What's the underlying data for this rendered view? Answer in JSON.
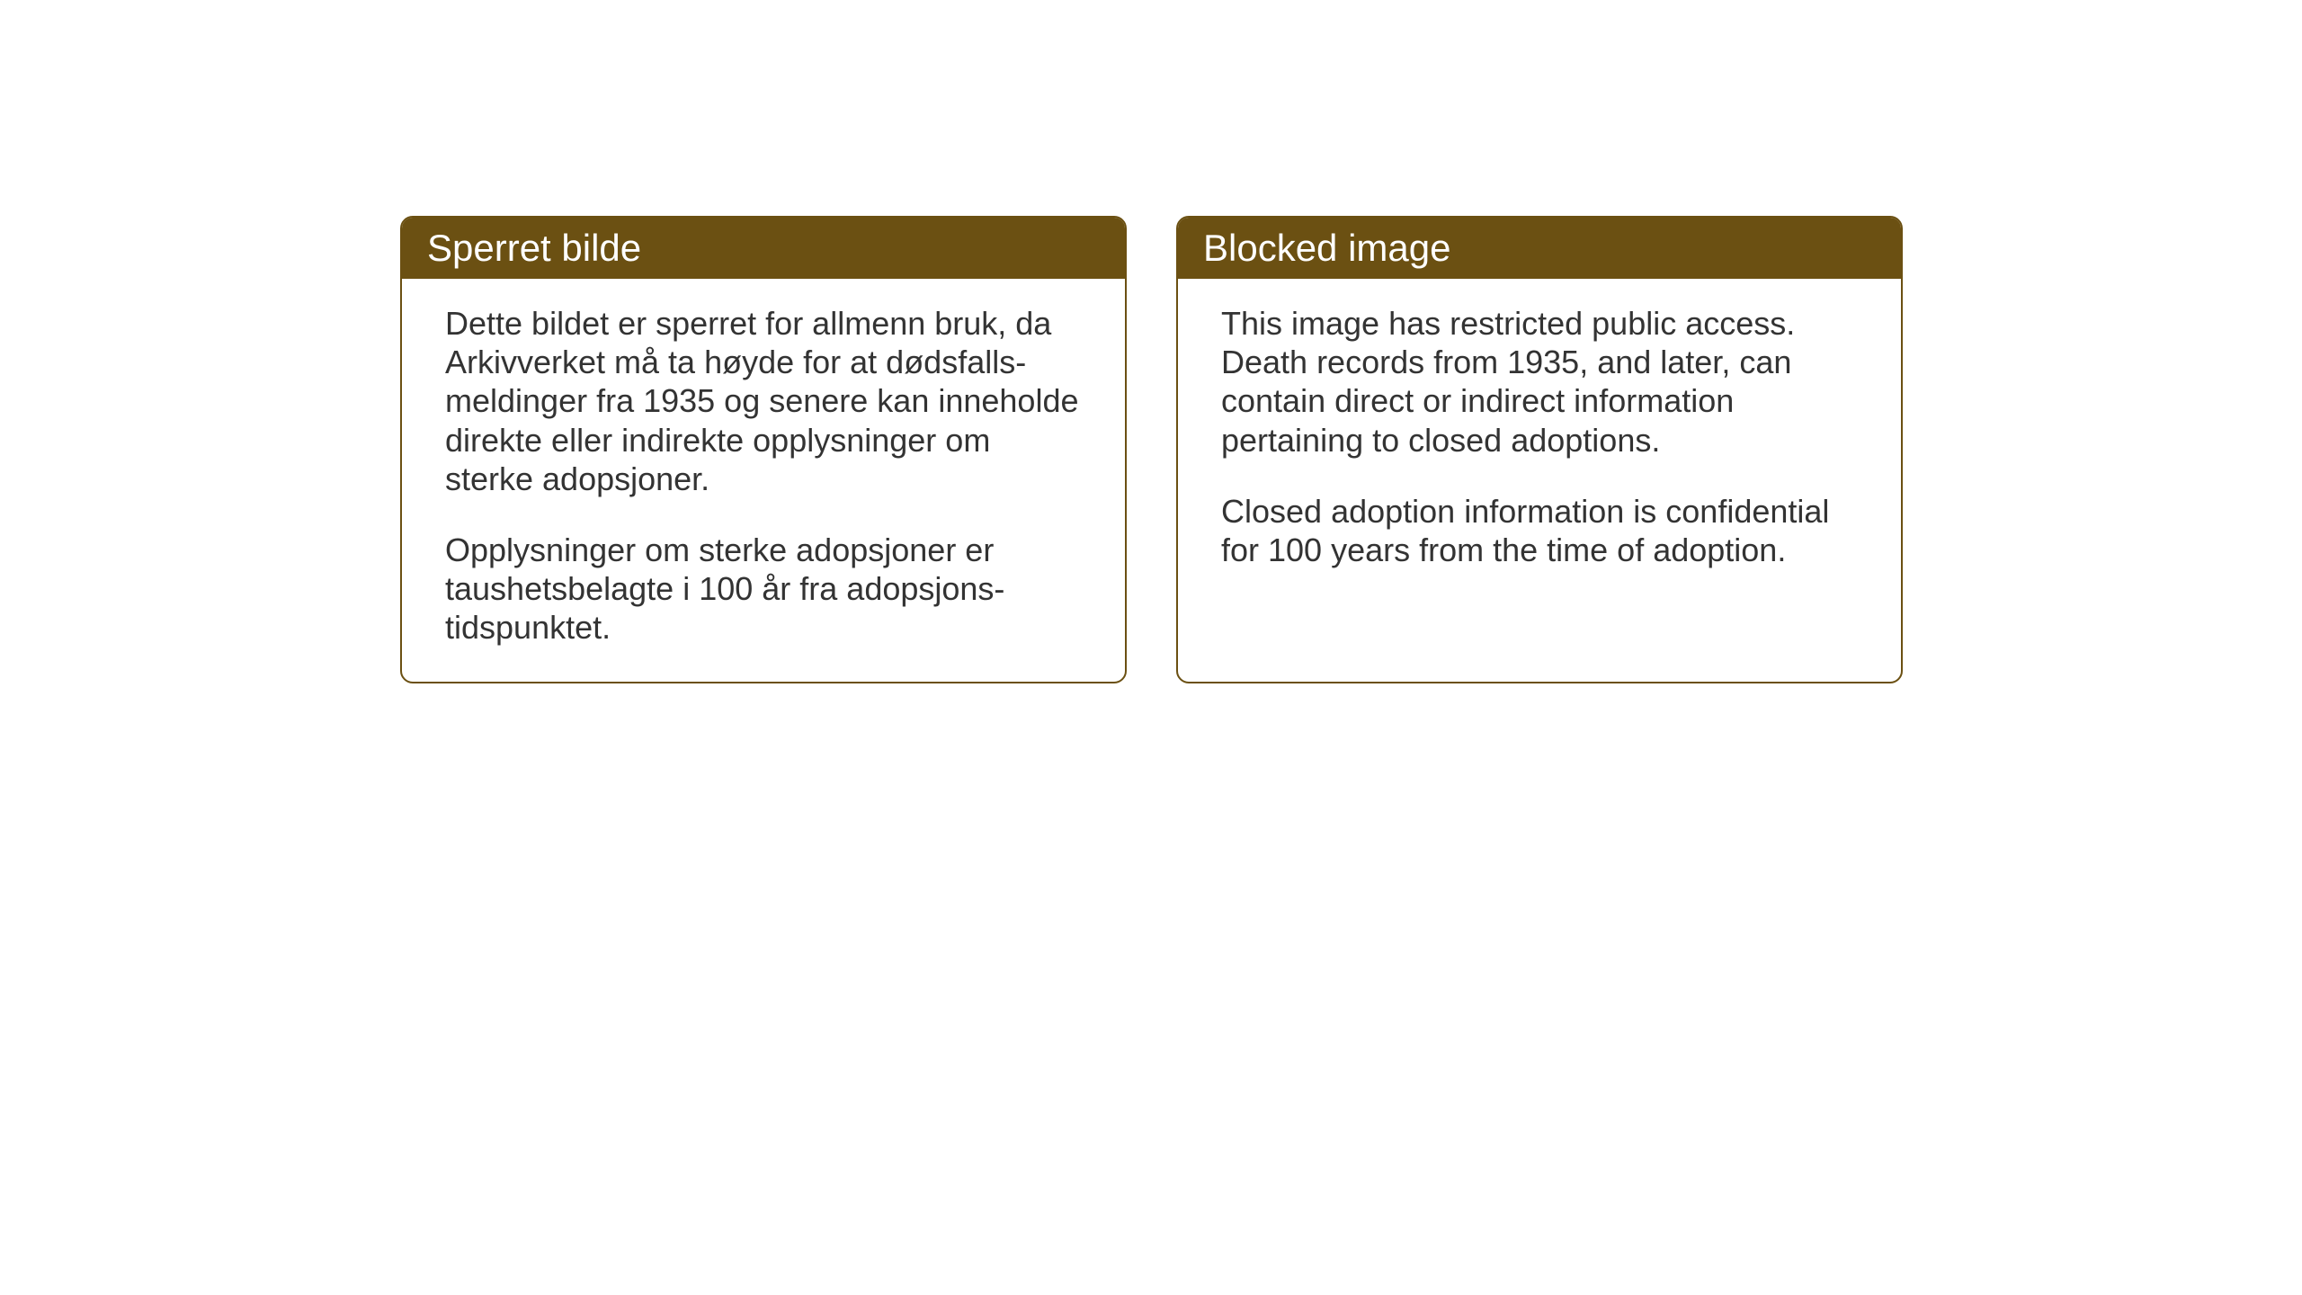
{
  "cards": {
    "norwegian": {
      "title": "Sperret bilde",
      "paragraph1": "Dette bildet er sperret for allmenn bruk, da Arkivverket må ta høyde for at dødsfalls-meldinger fra 1935 og senere kan inneholde direkte eller indirekte opplysninger om sterke adopsjoner.",
      "paragraph2": "Opplysninger om sterke adopsjoner er taushetsbelagte i 100 år fra adopsjons-tidspunktet."
    },
    "english": {
      "title": "Blocked image",
      "paragraph1": "This image has restricted public access. Death records from 1935, and later, can contain direct or indirect information pertaining to closed adoptions.",
      "paragraph2": "Closed adoption information is confidential for 100 years from the time of adoption."
    }
  },
  "styling": {
    "header_background_color": "#6b5012",
    "header_text_color": "#ffffff",
    "border_color": "#6b5012",
    "body_text_color": "#333333",
    "page_background_color": "#ffffff",
    "header_font_size": 42,
    "body_font_size": 36,
    "border_radius": 14,
    "border_width": 2
  }
}
